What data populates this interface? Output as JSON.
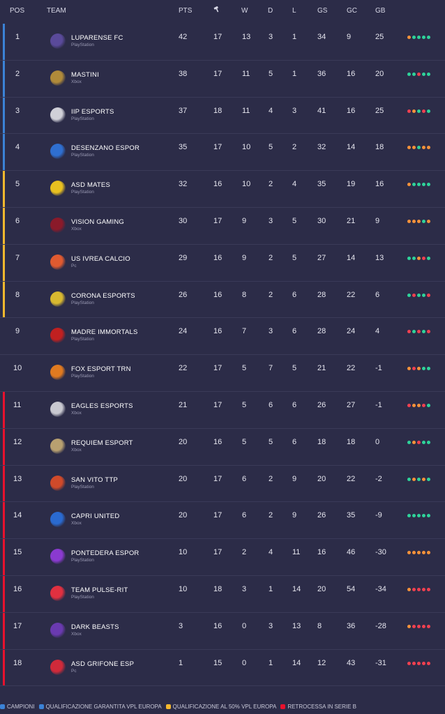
{
  "header": {
    "pos": "POS",
    "team": "TEAM",
    "pts": "PTS",
    "w": "W",
    "d": "D",
    "l": "L",
    "gs": "GS",
    "gc": "GC",
    "gb": "GB",
    "played_icon": "hammer-icon"
  },
  "colors": {
    "blue": "#3b82d6",
    "yellow": "#f5b82e",
    "red": "#e8112d",
    "win": "#2ed39a",
    "loss": "#f04050",
    "draw": "#f5923a"
  },
  "rows": [
    {
      "pos": "1",
      "team": "LUPARENSE FC",
      "platform": "PlayStation",
      "pts": "42",
      "played": "17",
      "w": "13",
      "d": "3",
      "l": "1",
      "gs": "34",
      "gc": "9",
      "gb": "25",
      "zone": "blue",
      "logo": "#5a4a9a",
      "form": [
        "draw",
        "win",
        "win",
        "win",
        "win"
      ]
    },
    {
      "pos": "2",
      "team": "MASTINI",
      "platform": "Xbox",
      "pts": "38",
      "played": "17",
      "w": "11",
      "d": "5",
      "l": "1",
      "gs": "36",
      "gc": "16",
      "gb": "20",
      "zone": "blue",
      "logo": "#b08a3a",
      "form": [
        "win",
        "win",
        "loss",
        "win",
        "win"
      ]
    },
    {
      "pos": "3",
      "team": "IIP ESPORTS",
      "platform": "PlayStation",
      "pts": "37",
      "played": "18",
      "w": "11",
      "d": "4",
      "l": "3",
      "gs": "41",
      "gc": "16",
      "gb": "25",
      "zone": "blue",
      "logo": "#d0d0d8",
      "form": [
        "loss",
        "draw",
        "win",
        "loss",
        "win"
      ]
    },
    {
      "pos": "4",
      "team": "DESENZANO ESPOR",
      "platform": "PlayStation",
      "pts": "35",
      "played": "17",
      "w": "10",
      "d": "5",
      "l": "2",
      "gs": "32",
      "gc": "14",
      "gb": "18",
      "zone": "blue",
      "logo": "#2f6fd0",
      "form": [
        "draw",
        "draw",
        "win",
        "draw",
        "draw"
      ]
    },
    {
      "pos": "5",
      "team": "ASD MATES",
      "platform": "PlayStation",
      "pts": "32",
      "played": "16",
      "w": "10",
      "d": "2",
      "l": "4",
      "gs": "35",
      "gc": "19",
      "gb": "16",
      "zone": "yellow",
      "logo": "#e8c020",
      "form": [
        "draw",
        "win",
        "win",
        "win",
        "win"
      ]
    },
    {
      "pos": "6",
      "team": "VISION GAMING",
      "platform": "Xbox",
      "pts": "30",
      "played": "17",
      "w": "9",
      "d": "3",
      "l": "5",
      "gs": "30",
      "gc": "21",
      "gb": "9",
      "zone": "yellow",
      "logo": "#8a1a2a",
      "form": [
        "draw",
        "draw",
        "draw",
        "win",
        "draw"
      ]
    },
    {
      "pos": "7",
      "team": "US IVREA CALCIO",
      "platform": "Pc",
      "pts": "29",
      "played": "16",
      "w": "9",
      "d": "2",
      "l": "5",
      "gs": "27",
      "gc": "14",
      "gb": "13",
      "zone": "yellow",
      "logo": "#e05a30",
      "form": [
        "win",
        "win",
        "draw",
        "loss",
        "win"
      ]
    },
    {
      "pos": "8",
      "team": "CORONA ESPORTS",
      "platform": "PlayStation",
      "pts": "26",
      "played": "16",
      "w": "8",
      "d": "2",
      "l": "6",
      "gs": "28",
      "gc": "22",
      "gb": "6",
      "zone": "yellow",
      "logo": "#d8b830",
      "form": [
        "win",
        "loss",
        "win",
        "win",
        "loss"
      ]
    },
    {
      "pos": "9",
      "team": "MADRE IMMORTALS",
      "platform": "PlayStation",
      "pts": "24",
      "played": "16",
      "w": "7",
      "d": "3",
      "l": "6",
      "gs": "28",
      "gc": "24",
      "gb": "4",
      "zone": "none",
      "logo": "#c02020",
      "form": [
        "loss",
        "win",
        "loss",
        "win",
        "loss"
      ]
    },
    {
      "pos": "10",
      "team": "FOX ESPORT TRN",
      "platform": "PlayStation",
      "pts": "22",
      "played": "17",
      "w": "5",
      "d": "7",
      "l": "5",
      "gs": "21",
      "gc": "22",
      "gb": "-1",
      "zone": "none",
      "logo": "#e07a20",
      "form": [
        "draw",
        "loss",
        "draw",
        "win",
        "win"
      ]
    },
    {
      "pos": "11",
      "team": "EAGLES ESPORTS",
      "platform": "Xbox",
      "pts": "21",
      "played": "17",
      "w": "5",
      "d": "6",
      "l": "6",
      "gs": "26",
      "gc": "27",
      "gb": "-1",
      "zone": "red",
      "logo": "#c8c8d0",
      "form": [
        "loss",
        "draw",
        "draw",
        "loss",
        "win"
      ]
    },
    {
      "pos": "12",
      "team": "REQUIEM ESPORT",
      "platform": "Xbox",
      "pts": "20",
      "played": "16",
      "w": "5",
      "d": "5",
      "l": "6",
      "gs": "18",
      "gc": "18",
      "gb": "0",
      "zone": "red",
      "logo": "#b8a070",
      "form": [
        "win",
        "draw",
        "loss",
        "win",
        "win"
      ]
    },
    {
      "pos": "13",
      "team": "SAN VITO TTP",
      "platform": "PlayStation",
      "pts": "20",
      "played": "17",
      "w": "6",
      "d": "2",
      "l": "9",
      "gs": "20",
      "gc": "22",
      "gb": "-2",
      "zone": "red",
      "logo": "#d04a2a",
      "form": [
        "win",
        "draw",
        "win",
        "draw",
        "win"
      ]
    },
    {
      "pos": "14",
      "team": "CAPRI UNITED",
      "platform": "Xbox",
      "pts": "20",
      "played": "17",
      "w": "6",
      "d": "2",
      "l": "9",
      "gs": "26",
      "gc": "35",
      "gb": "-9",
      "zone": "red",
      "logo": "#2a6ad0",
      "form": [
        "win",
        "win",
        "win",
        "win",
        "win"
      ]
    },
    {
      "pos": "15",
      "team": "PONTEDERA ESPOR",
      "platform": "PlayStation",
      "pts": "10",
      "played": "17",
      "w": "2",
      "d": "4",
      "l": "11",
      "gs": "16",
      "gc": "46",
      "gb": "-30",
      "zone": "red",
      "logo": "#8a3ad0",
      "form": [
        "draw",
        "draw",
        "draw",
        "draw",
        "draw"
      ]
    },
    {
      "pos": "16",
      "team": "TEAM PULSE-RIT",
      "platform": "PlayStation",
      "pts": "10",
      "played": "18",
      "w": "3",
      "d": "1",
      "l": "14",
      "gs": "20",
      "gc": "54",
      "gb": "-34",
      "zone": "red",
      "logo": "#e03040",
      "form": [
        "draw",
        "loss",
        "loss",
        "loss",
        "loss"
      ]
    },
    {
      "pos": "17",
      "team": "DARK BEASTS",
      "platform": "Xbox",
      "pts": "3",
      "played": "16",
      "w": "0",
      "d": "3",
      "l": "13",
      "gs": "8",
      "gc": "36",
      "gb": "-28",
      "zone": "red",
      "logo": "#6a3ab0",
      "form": [
        "draw",
        "loss",
        "loss",
        "loss",
        "loss"
      ]
    },
    {
      "pos": "18",
      "team": "ASD GRIFONE ESP",
      "platform": "Pc",
      "pts": "1",
      "played": "15",
      "w": "0",
      "d": "1",
      "l": "14",
      "gs": "12",
      "gc": "43",
      "gb": "-31",
      "zone": "red",
      "logo": "#d02a3a",
      "form": [
        "loss",
        "loss",
        "loss",
        "loss",
        "loss"
      ]
    }
  ],
  "legend": [
    {
      "label": "CAMPIONI",
      "color": "#3b82d6"
    },
    {
      "label": "QUALIFICAZIONE GARANTITA VPL EUROPA",
      "color": "#3b82d6"
    },
    {
      "label": "QUALIFICAZIONE AL 50% VPL EUROPA",
      "color": "#f5b82e"
    },
    {
      "label": "RETROCESSA IN SERIE B",
      "color": "#e8112d"
    }
  ]
}
